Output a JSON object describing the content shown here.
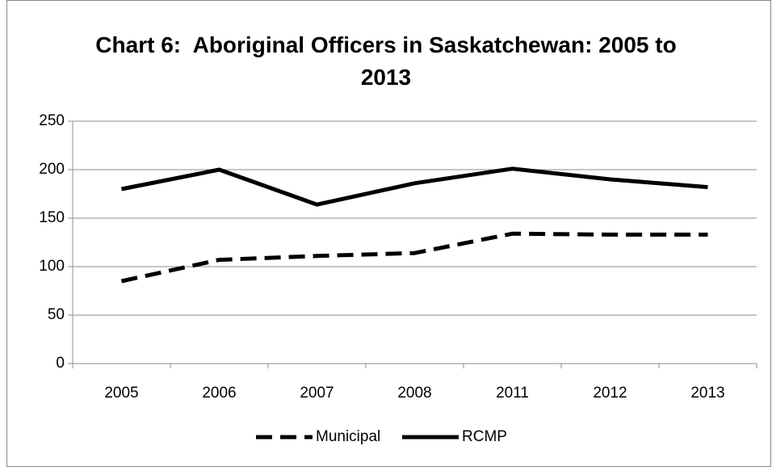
{
  "chart_data": {
    "type": "line",
    "title": "Chart 6:  Aboriginal Officers in Saskatchewan: 2005 to 2013",
    "categories": [
      "2005",
      "2006",
      "2007",
      "2008",
      "2011",
      "2012",
      "2013"
    ],
    "series": [
      {
        "name": "Municipal",
        "color": "#000000",
        "dash": true,
        "values": [
          85,
          107,
          111,
          114,
          134,
          133,
          133
        ]
      },
      {
        "name": "RCMP",
        "color": "#000000",
        "dash": false,
        "values": [
          180,
          200,
          164,
          186,
          201,
          190,
          182
        ]
      }
    ],
    "ylim": [
      0,
      250
    ],
    "yticks": [
      0,
      50,
      100,
      150,
      200,
      250
    ],
    "grid": true,
    "legend": "bottom"
  }
}
